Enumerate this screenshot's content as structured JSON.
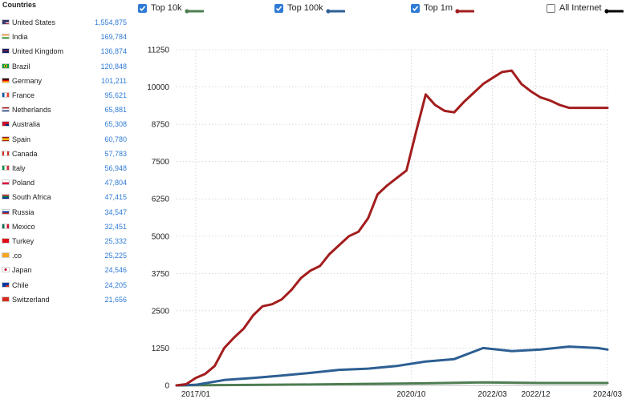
{
  "sidebar": {
    "title": "Countries",
    "countries": [
      {
        "name": "United States",
        "count": "1,554,875",
        "flag": "us-flag-icon"
      },
      {
        "name": "India",
        "count": "169,784",
        "flag": "india-flag-icon"
      },
      {
        "name": "United Kingdom",
        "count": "136,874",
        "flag": "uk-flag-icon"
      },
      {
        "name": "Brazil",
        "count": "120,848",
        "flag": "brazil-flag-icon"
      },
      {
        "name": "Germany",
        "count": "101,211",
        "flag": "germany-flag-icon"
      },
      {
        "name": "France",
        "count": "95,621",
        "flag": "france-flag-icon"
      },
      {
        "name": "Netherlands",
        "count": "65,881",
        "flag": "netherlands-flag-icon"
      },
      {
        "name": "Australia",
        "count": "65,308",
        "flag": "australia-flag-icon"
      },
      {
        "name": "Spain",
        "count": "60,780",
        "flag": "spain-flag-icon"
      },
      {
        "name": "Canada",
        "count": "57,783",
        "flag": "canada-flag-icon"
      },
      {
        "name": "Italy",
        "count": "56,948",
        "flag": "italy-flag-icon"
      },
      {
        "name": "Poland",
        "count": "47,804",
        "flag": "poland-flag-icon"
      },
      {
        "name": "South Africa",
        "count": "47,415",
        "flag": "south-africa-flag-icon"
      },
      {
        "name": "Russia",
        "count": "34,547",
        "flag": "russia-flag-icon"
      },
      {
        "name": "Mexico",
        "count": "32,451",
        "flag": "mexico-flag-icon"
      },
      {
        "name": "Turkey",
        "count": "25,332",
        "flag": "turkey-flag-icon"
      },
      {
        "name": ".co",
        "count": "25,225",
        "flag": "co-tld-icon"
      },
      {
        "name": "Japan",
        "count": "24,546",
        "flag": "japan-flag-icon"
      },
      {
        "name": "Chile",
        "count": "24,205",
        "flag": "chile-flag-icon"
      },
      {
        "name": "Switzerland",
        "count": "21,656",
        "flag": "switzerland-flag-icon"
      }
    ]
  },
  "legend": [
    {
      "label": "Top 10k",
      "checked": true,
      "color": "#4e7d52",
      "checkbox_icon": "checkbox-checked-icon"
    },
    {
      "label": "Top 100k",
      "checked": true,
      "color": "#2d5f93",
      "checkbox_icon": "checkbox-checked-icon"
    },
    {
      "label": "Top 1m",
      "checked": true,
      "color": "#a31d1d",
      "checkbox_icon": "checkbox-checked-icon"
    },
    {
      "label": "All Internet",
      "checked": false,
      "color": "#000000",
      "checkbox_icon": "checkbox-unchecked-icon"
    }
  ],
  "chart_data": {
    "type": "line",
    "x_type": "date",
    "x_ticks": [
      "2017/01",
      "2020/10",
      "2022/03",
      "2022/12",
      "2024/03"
    ],
    "y_ticks": [
      0,
      1250,
      2500,
      3750,
      5000,
      6250,
      7500,
      8750,
      10000,
      11250
    ],
    "ylim": [
      0,
      11250
    ],
    "xlim": [
      "2016-09",
      "2024-03"
    ],
    "grid": "dotted",
    "legend_position": "top",
    "series": [
      {
        "name": "Top 1m",
        "color": "#a31d1d",
        "x": [
          "2016-09",
          "2016-11",
          "2017-01",
          "2017-03",
          "2017-05",
          "2017-07",
          "2017-09",
          "2017-11",
          "2018-01",
          "2018-03",
          "2018-05",
          "2018-07",
          "2018-09",
          "2018-11",
          "2019-01",
          "2019-03",
          "2019-05",
          "2019-07",
          "2019-09",
          "2019-11",
          "2020-01",
          "2020-03",
          "2020-05",
          "2020-07",
          "2020-09",
          "2020-11",
          "2021-01",
          "2021-03",
          "2021-05",
          "2021-07",
          "2021-09",
          "2021-11",
          "2022-01",
          "2022-03",
          "2022-05",
          "2022-07",
          "2022-09",
          "2022-11",
          "2023-01",
          "2023-03",
          "2023-05",
          "2023-07",
          "2023-09",
          "2023-11",
          "2024-01",
          "2024-03"
        ],
        "y": [
          0,
          40,
          250,
          380,
          650,
          1250,
          1600,
          1900,
          2350,
          2650,
          2720,
          2880,
          3200,
          3600,
          3850,
          4000,
          4400,
          4700,
          5000,
          5150,
          5600,
          6400,
          6700,
          6950,
          7200,
          8500,
          9750,
          9400,
          9200,
          9150,
          9500,
          9800,
          10100,
          10300,
          10500,
          10550,
          10100,
          9850,
          9650,
          9550,
          9400,
          9300,
          9300,
          9300,
          9300,
          9300
        ]
      },
      {
        "name": "Top 100k",
        "color": "#2d5f93",
        "x": [
          "2016-09",
          "2017-01",
          "2017-07",
          "2018-01",
          "2018-07",
          "2019-01",
          "2019-07",
          "2020-01",
          "2020-07",
          "2021-01",
          "2021-07",
          "2022-01",
          "2022-07",
          "2023-01",
          "2023-07",
          "2024-01",
          "2024-03"
        ],
        "y": [
          0,
          20,
          180,
          250,
          330,
          420,
          520,
          560,
          650,
          800,
          880,
          1250,
          1150,
          1200,
          1300,
          1250,
          1200
        ]
      },
      {
        "name": "Top 10k",
        "color": "#4e7d52",
        "x": [
          "2016-09",
          "2017-01",
          "2018-01",
          "2019-01",
          "2020-01",
          "2021-01",
          "2022-01",
          "2023-01",
          "2024-03"
        ],
        "y": [
          0,
          5,
          15,
          30,
          50,
          70,
          100,
          80,
          80
        ]
      }
    ]
  }
}
